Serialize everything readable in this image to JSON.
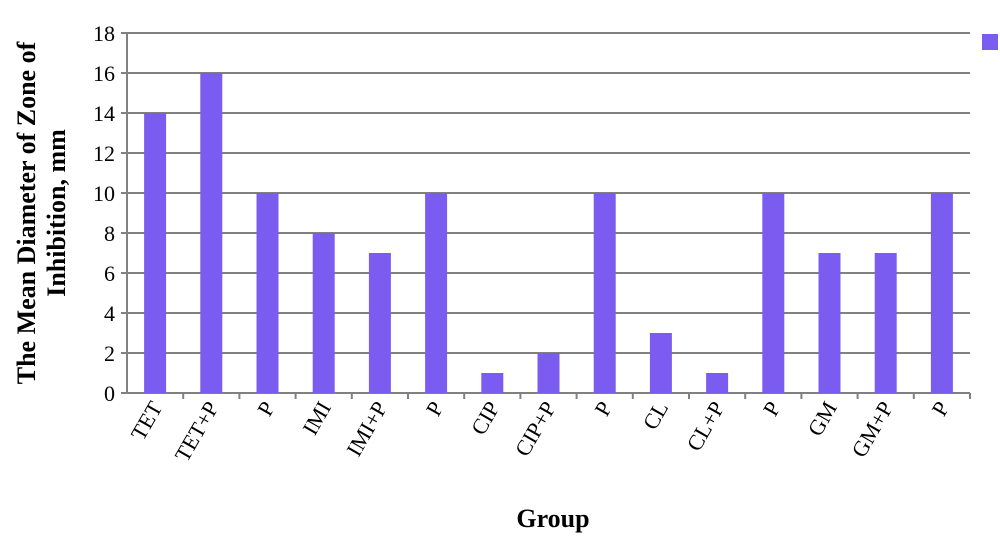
{
  "chart_data": {
    "type": "bar",
    "ylabel": [
      "The Mean Diameter of Zone of",
      "Inhibition, mm"
    ],
    "xlabel": "Group",
    "categories": [
      "TET",
      "TET+P",
      "P",
      "IMI",
      "IMI+P",
      "P",
      "CIP",
      "CIP+P",
      "P",
      "CL",
      "CL+P",
      "P",
      "GM",
      "GM+P",
      "P"
    ],
    "values": [
      14,
      16,
      10,
      8,
      7,
      10,
      1,
      2,
      10,
      3,
      1,
      10,
      7,
      7,
      10
    ],
    "color": "#7b5cf0",
    "ylim": [
      0,
      18
    ],
    "yticks": [
      0,
      2,
      4,
      6,
      8,
      10,
      12,
      14,
      16,
      18
    ],
    "grid": true
  }
}
